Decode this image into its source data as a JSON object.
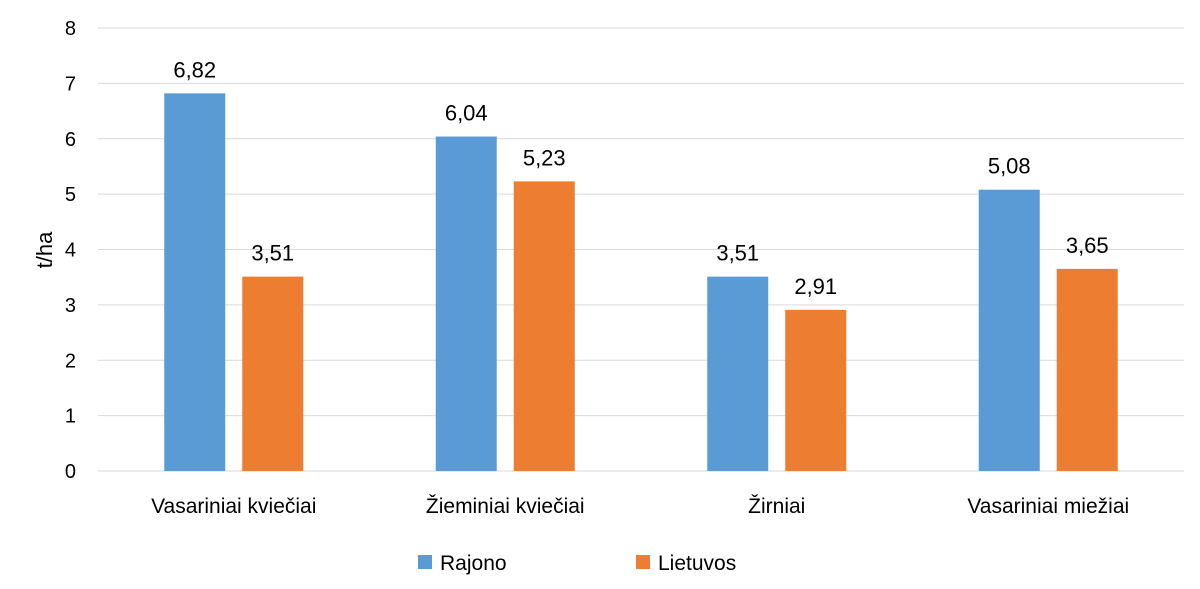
{
  "chart_data": {
    "type": "bar",
    "categories": [
      "Vasariniai kviečiai",
      "Žieminiai kviečiai",
      "Žirniai",
      "Vasariniai miežiai"
    ],
    "series": [
      {
        "name": "Rajono",
        "values": [
          6.82,
          6.04,
          3.51,
          5.08
        ],
        "color": "#5b9bd5"
      },
      {
        "name": "Lietuvos",
        "values": [
          3.51,
          5.23,
          2.91,
          3.65
        ],
        "color": "#ed7d31"
      }
    ],
    "data_labels": [
      [
        "6,82",
        "6,04",
        "3,51",
        "5,08"
      ],
      [
        "3,51",
        "5,23",
        "2,91",
        "3,65"
      ]
    ],
    "ylabel": "t/ha",
    "ylim": [
      0,
      8
    ],
    "yticks": [
      "0",
      "1",
      "2",
      "3",
      "4",
      "5",
      "6",
      "7",
      "8"
    ],
    "grid": true,
    "legend_position": "bottom"
  }
}
